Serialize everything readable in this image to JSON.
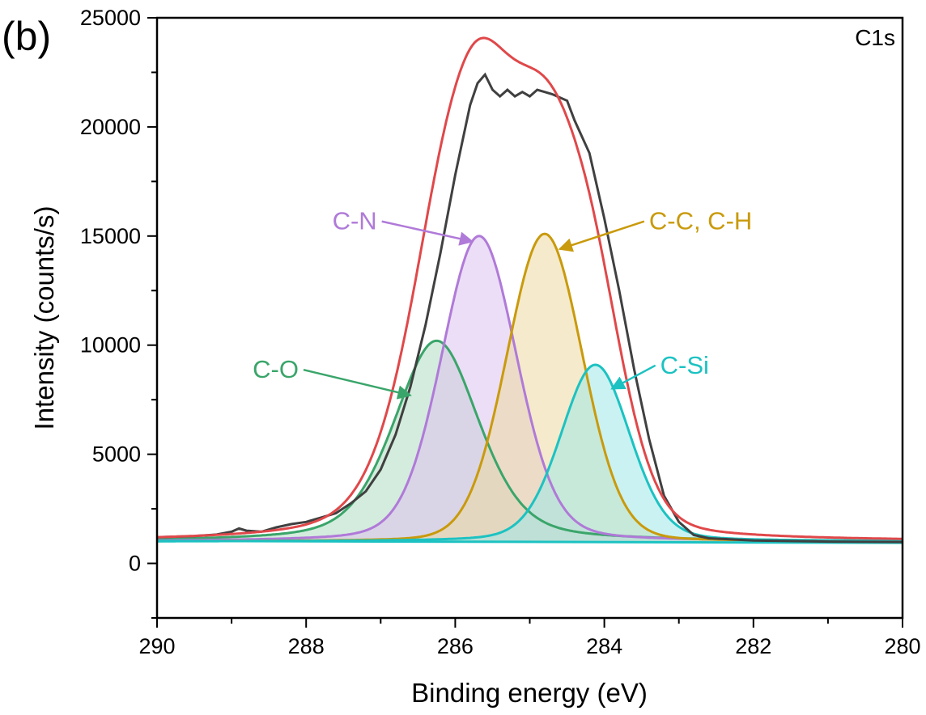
{
  "chart_data": {
    "type": "line",
    "panel_label": "(b)",
    "core_level": "C1s",
    "xlabel": "Binding energy (eV)",
    "ylabel": "Intensity (counts/s)",
    "xlim": [
      290,
      280
    ],
    "ylim": [
      -2500,
      25000
    ],
    "x_ticks": [
      290,
      288,
      286,
      284,
      282,
      280
    ],
    "y_ticks": [
      0,
      5000,
      10000,
      15000,
      20000,
      25000
    ],
    "grid": false,
    "background": 1000,
    "raw_spectrum": {
      "color": "#404040",
      "points": [
        [
          290,
          1200
        ],
        [
          289.5,
          1250
        ],
        [
          289.2,
          1320
        ],
        [
          289.0,
          1450
        ],
        [
          288.9,
          1600
        ],
        [
          288.8,
          1500
        ],
        [
          288.6,
          1450
        ],
        [
          288.4,
          1650
        ],
        [
          288.2,
          1800
        ],
        [
          288.0,
          1900
        ],
        [
          287.8,
          2100
        ],
        [
          287.6,
          2300
        ],
        [
          287.4,
          2750
        ],
        [
          287.2,
          3300
        ],
        [
          287.0,
          4300
        ],
        [
          286.8,
          5900
        ],
        [
          286.6,
          8100
        ],
        [
          286.4,
          10900
        ],
        [
          286.2,
          14200
        ],
        [
          286.0,
          17800
        ],
        [
          285.8,
          21000
        ],
        [
          285.7,
          22000
        ],
        [
          285.6,
          22400
        ],
        [
          285.5,
          21700
        ],
        [
          285.4,
          21400
        ],
        [
          285.3,
          21700
        ],
        [
          285.2,
          21400
        ],
        [
          285.1,
          21600
        ],
        [
          285.0,
          21400
        ],
        [
          284.9,
          21700
        ],
        [
          284.8,
          21600
        ],
        [
          284.7,
          21500
        ],
        [
          284.5,
          21200
        ],
        [
          284.4,
          20300
        ],
        [
          284.2,
          18800
        ],
        [
          284.0,
          15800
        ],
        [
          283.8,
          12500
        ],
        [
          283.6,
          8900
        ],
        [
          283.4,
          5700
        ],
        [
          283.2,
          3100
        ],
        [
          283.0,
          1900
        ],
        [
          282.8,
          1300
        ],
        [
          282.6,
          1150
        ],
        [
          282.0,
          1050
        ],
        [
          281.0,
          1000
        ],
        [
          280.0,
          980
        ]
      ]
    },
    "series": [
      {
        "name": "C-O",
        "color": "#3aa56a",
        "fill": "#b0dcc1",
        "center": 286.25,
        "amplitude": 9200,
        "fwhm": 1.35,
        "eta": 0.4
      },
      {
        "name": "C-N",
        "color": "#b07ad8",
        "fill": "#dcc3ef",
        "center": 285.68,
        "amplitude": 14000,
        "fwhm": 1.2,
        "eta": 0.2
      },
      {
        "name": "C-C, C-H",
        "color": "#c99a0c",
        "fill": "#ecd8a0",
        "center": 284.8,
        "amplitude": 14100,
        "fwhm": 1.2,
        "eta": 0.1
      },
      {
        "name": "C-Si",
        "color": "#1cc2c2",
        "fill": "#9fe8e8",
        "center": 284.12,
        "amplitude": 8100,
        "fwhm": 1.1,
        "eta": 0.2
      }
    ],
    "envelope_color": "#e0484a",
    "baseline_color": "#1cc2c2",
    "annotations": [
      {
        "text": "C-N",
        "series": "C-N",
        "color": "#b07ad8",
        "text_at": [
          287.05,
          15300
        ],
        "arrow_to": [
          285.77,
          14750
        ]
      },
      {
        "text": "C-C, C-H",
        "series": "C-C, C-H",
        "color": "#c99a0c",
        "text_at": [
          283.4,
          15300
        ],
        "arrow_to": [
          284.6,
          14400
        ]
      },
      {
        "text": "C-O",
        "series": "C-O",
        "color": "#3aa56a",
        "text_at": [
          288.1,
          8500
        ],
        "arrow_to": [
          286.6,
          7700
        ]
      },
      {
        "text": "C-Si",
        "series": "C-Si",
        "color": "#1cc2c2",
        "text_at": [
          283.25,
          8700
        ],
        "arrow_to": [
          283.9,
          8000
        ]
      }
    ]
  }
}
